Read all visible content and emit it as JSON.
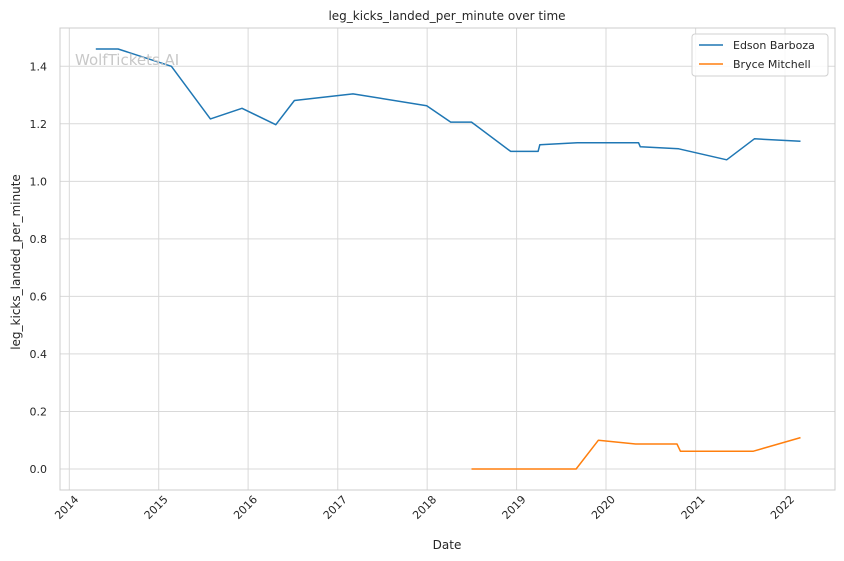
{
  "chart_data": {
    "type": "line",
    "title": "leg_kicks_landed_per_minute over time",
    "xlabel": "Date",
    "ylabel": "leg_kicks_landed_per_minute",
    "watermark": "WolfTickets.AI",
    "xlim": [
      "2013-11-24",
      "2022-07-24"
    ],
    "ylim": [
      -0.073,
      1.533
    ],
    "x_ticks": [
      "2014",
      "2015",
      "2016",
      "2017",
      "2018",
      "2019",
      "2020",
      "2021",
      "2022"
    ],
    "y_ticks": [
      "0.0",
      "0.2",
      "0.4",
      "0.6",
      "0.8",
      "1.0",
      "1.2",
      "1.4"
    ],
    "grid": true,
    "legend_position": "top-right",
    "series": [
      {
        "name": "Edson Barboza",
        "color": "#1f77b4",
        "points": [
          [
            "2014-04-19",
            1.46
          ],
          [
            "2014-07-19",
            1.46
          ],
          [
            "2015-02-22",
            1.4
          ],
          [
            "2015-07-31",
            1.217
          ],
          [
            "2015-12-07",
            1.254
          ],
          [
            "2016-04-23",
            1.197
          ],
          [
            "2016-07-08",
            1.281
          ],
          [
            "2017-03-04",
            1.304
          ],
          [
            "2017-12-30",
            1.263
          ],
          [
            "2018-04-07",
            1.206
          ],
          [
            "2018-07-01",
            1.206
          ],
          [
            "2018-12-08",
            1.104
          ],
          [
            "2019-03-30",
            1.104
          ],
          [
            "2019-04-06",
            1.127
          ],
          [
            "2019-09-06",
            1.134
          ],
          [
            "2020-05-13",
            1.134
          ],
          [
            "2020-05-20",
            1.12
          ],
          [
            "2020-10-24",
            1.113
          ],
          [
            "2021-05-08",
            1.075
          ],
          [
            "2021-08-29",
            1.148
          ],
          [
            "2022-03-05",
            1.139
          ]
        ]
      },
      {
        "name": "Bryce Mitchell",
        "color": "#ff7f0e",
        "points": [
          [
            "2018-07-01",
            0.0
          ],
          [
            "2019-09-01",
            0.0
          ],
          [
            "2019-12-01",
            0.1
          ],
          [
            "2020-05-01",
            0.087
          ],
          [
            "2020-10-17",
            0.087
          ],
          [
            "2020-10-31",
            0.062
          ],
          [
            "2021-08-25",
            0.062
          ],
          [
            "2022-03-05",
            0.109
          ]
        ]
      }
    ]
  }
}
